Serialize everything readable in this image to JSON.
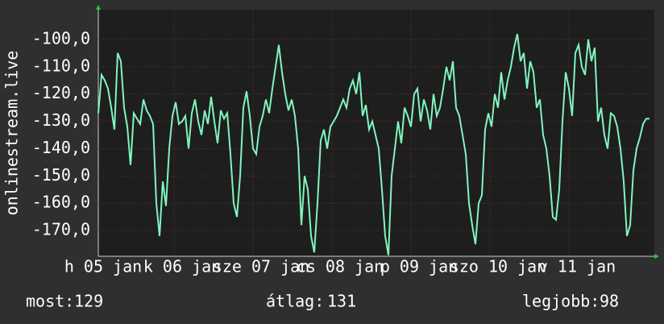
{
  "chart_data": {
    "type": "line",
    "y_label": "onlinestream.live",
    "ylim": [
      -180,
      -90
    ],
    "yticks": [
      {
        "value": -100,
        "label": "-100,0"
      },
      {
        "value": -110,
        "label": "-110,0"
      },
      {
        "value": -120,
        "label": "-120,0"
      },
      {
        "value": -130,
        "label": "-130,0"
      },
      {
        "value": -140,
        "label": "-140,0"
      },
      {
        "value": -150,
        "label": "-150,0"
      },
      {
        "value": -160,
        "label": "-160,0"
      },
      {
        "value": -170,
        "label": "-170,0"
      }
    ],
    "xtick_labels": [
      "h 05 jan",
      "k 06 jan",
      "sze 07 jan",
      "cs 08 jan",
      "p 09 jan",
      "szo 10 jan",
      "v 11 jan"
    ],
    "grid": true,
    "series": [
      {
        "name": "onlinestream.live",
        "color": "#80f5be",
        "values": [
          -127,
          -113,
          -115,
          -118,
          -125,
          -133,
          -105,
          -108,
          -125,
          -132,
          -146,
          -127,
          -129,
          -131,
          -122,
          -126,
          -128,
          -131,
          -160,
          -172,
          -152,
          -161,
          -140,
          -128,
          -123,
          -131,
          -130,
          -128,
          -140,
          -127,
          -122,
          -130,
          -135,
          -126,
          -131,
          -121,
          -130,
          -138,
          -126,
          -129,
          -127,
          -142,
          -160,
          -165,
          -150,
          -125,
          -119,
          -128,
          -140,
          -142,
          -132,
          -128,
          -122,
          -127,
          -118,
          -110,
          -102,
          -112,
          -120,
          -126,
          -122,
          -128,
          -140,
          -168,
          -150,
          -155,
          -172,
          -178,
          -160,
          -137,
          -133,
          -140,
          -132,
          -130,
          -128,
          -125,
          -122,
          -125,
          -118,
          -115,
          -120,
          -112,
          -128,
          -124,
          -133,
          -130,
          -135,
          -140,
          -155,
          -172,
          -179,
          -150,
          -140,
          -130,
          -138,
          -125,
          -128,
          -132,
          -120,
          -118,
          -130,
          -122,
          -126,
          -133,
          -120,
          -128,
          -125,
          -118,
          -110,
          -115,
          -108,
          -125,
          -128,
          -135,
          -142,
          -160,
          -168,
          -175,
          -160,
          -157,
          -133,
          -127,
          -132,
          -120,
          -125,
          -112,
          -122,
          -115,
          -110,
          -103,
          -98,
          -108,
          -105,
          -118,
          -108,
          -112,
          -125,
          -122,
          -135,
          -140,
          -150,
          -165,
          -166,
          -155,
          -130,
          -112,
          -118,
          -128,
          -105,
          -102,
          -110,
          -113,
          -100,
          -108,
          -103,
          -130,
          -125,
          -135,
          -140,
          -127,
          -128,
          -132,
          -140,
          -152,
          -172,
          -168,
          -148,
          -140,
          -136,
          -131,
          -129,
          -129
        ]
      }
    ]
  },
  "footer": [
    {
      "label": "most:",
      "value": "129"
    },
    {
      "label": "átlag:",
      "value": "131"
    },
    {
      "label": "legjobb:",
      "value": "98"
    }
  ]
}
